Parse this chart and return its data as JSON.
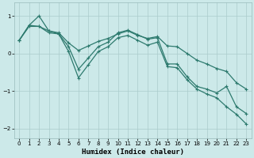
{
  "xlabel": "Humidex (Indice chaleur)",
  "background_color": "#cce9e9",
  "grid_color": "#aacccc",
  "line_color": "#2d7a6e",
  "xlim": [
    -0.5,
    23.5
  ],
  "ylim": [
    -2.25,
    1.35
  ],
  "yticks": [
    -2,
    -1,
    0,
    1
  ],
  "xticks": [
    0,
    1,
    2,
    3,
    4,
    5,
    6,
    7,
    8,
    9,
    10,
    11,
    12,
    13,
    14,
    15,
    16,
    17,
    18,
    19,
    20,
    21,
    22,
    23
  ],
  "line1_x": [
    0,
    1,
    2,
    3,
    4,
    5,
    6,
    7,
    8,
    9,
    10,
    11,
    12,
    13,
    14,
    15,
    16,
    17,
    18,
    19,
    20,
    21,
    22,
    23
  ],
  "line1_y": [
    0.35,
    0.72,
    0.72,
    0.6,
    0.55,
    0.28,
    0.08,
    0.2,
    0.32,
    0.4,
    0.52,
    0.6,
    0.48,
    0.4,
    0.45,
    0.2,
    0.18,
    0.0,
    -0.18,
    -0.28,
    -0.4,
    -0.48,
    -0.78,
    -0.95
  ],
  "line2_x": [
    0,
    1,
    2,
    3,
    4,
    5,
    6,
    7,
    8,
    9,
    10,
    11,
    12,
    13,
    14,
    15,
    16,
    17,
    18,
    19,
    20,
    21,
    22,
    23
  ],
  "line2_y": [
    0.35,
    0.75,
    1.0,
    0.6,
    0.52,
    0.18,
    -0.42,
    -0.12,
    0.18,
    0.3,
    0.55,
    0.62,
    0.5,
    0.38,
    0.42,
    -0.28,
    -0.28,
    -0.62,
    -0.88,
    -0.95,
    -1.05,
    -0.88,
    -1.42,
    -1.6
  ],
  "line3_x": [
    0,
    1,
    2,
    3,
    4,
    5,
    6,
    7,
    8,
    9,
    10,
    11,
    12,
    13,
    14,
    15,
    16,
    17,
    18,
    19,
    20,
    21,
    22,
    23
  ],
  "line3_y": [
    0.35,
    0.75,
    0.72,
    0.55,
    0.52,
    0.05,
    -0.65,
    -0.3,
    0.05,
    0.18,
    0.42,
    0.48,
    0.35,
    0.22,
    0.3,
    -0.35,
    -0.38,
    -0.7,
    -0.95,
    -1.08,
    -1.18,
    -1.42,
    -1.62,
    -1.88
  ]
}
